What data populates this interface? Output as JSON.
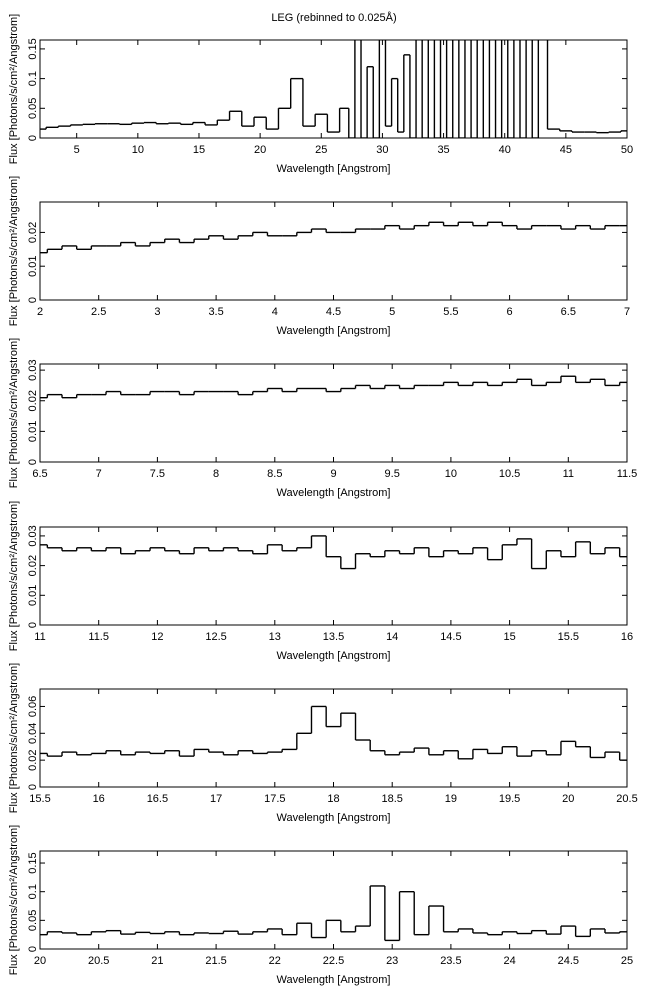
{
  "title": "LEG (rebinned to 0.025Å)",
  "chart_data": [
    {
      "type": "step",
      "x_label": "Wavelength [Angstrom]",
      "y_label": "Flux [Photons/s/cm²/Angstrom]",
      "color": "#000000",
      "xlim": [
        2,
        50
      ],
      "ylim": [
        0,
        0.165
      ],
      "xticks": [
        5,
        10,
        15,
        20,
        25,
        30,
        35,
        40,
        45,
        50
      ],
      "yticks": [
        0,
        0.05,
        0.1,
        0.15
      ],
      "x": [
        2,
        3,
        4,
        5,
        6,
        7,
        8,
        9,
        10,
        11,
        12,
        13,
        14,
        15,
        16,
        17,
        18,
        19,
        20,
        21,
        22,
        23,
        24,
        25,
        26,
        27,
        27.5,
        28,
        28.5,
        29,
        29.5,
        30,
        30.5,
        31,
        31.5,
        32,
        32.5,
        33,
        33.5,
        34,
        34.5,
        35,
        35.5,
        36,
        36.5,
        37,
        37.5,
        38,
        38.5,
        39,
        39.5,
        40,
        40.5,
        41,
        41.5,
        42,
        42.5,
        43,
        44,
        45,
        46,
        47,
        48,
        49,
        50
      ],
      "values": [
        0.015,
        0.018,
        0.02,
        0.022,
        0.023,
        0.024,
        0.024,
        0.023,
        0.025,
        0.026,
        0.024,
        0.025,
        0.023,
        0.026,
        0.022,
        0.03,
        0.045,
        0.02,
        0.035,
        0.015,
        0.05,
        0.1,
        0.02,
        0.04,
        0.01,
        0.05,
        0.0,
        0.18,
        0.0,
        0.12,
        0.0,
        0.18,
        0.02,
        0.1,
        0.01,
        0.14,
        0.0,
        0.18,
        0.0,
        0.18,
        0.0,
        0.18,
        0.0,
        0.18,
        0.0,
        0.18,
        0.0,
        0.18,
        0.0,
        0.18,
        0.0,
        0.18,
        0.0,
        0.18,
        0.0,
        0.18,
        0.0,
        0.18,
        0.015,
        0.012,
        0.01,
        0.01,
        0.009,
        0.01,
        0.012
      ]
    },
    {
      "type": "step",
      "x_label": "Wavelength [Angstrom]",
      "y_label": "Flux [Photons/s/cm²/Angstrom]",
      "color": "#000000",
      "xlim": [
        2,
        7
      ],
      "ylim": [
        0,
        0.029
      ],
      "xticks": [
        2,
        2.5,
        3,
        3.5,
        4,
        4.5,
        5,
        5.5,
        6,
        6.5,
        7
      ],
      "yticks": [
        0,
        0.01,
        0.02
      ],
      "x": [
        2,
        2.125,
        2.25,
        2.375,
        2.5,
        2.625,
        2.75,
        2.875,
        3,
        3.125,
        3.25,
        3.375,
        3.5,
        3.625,
        3.75,
        3.875,
        4,
        4.125,
        4.25,
        4.375,
        4.5,
        4.625,
        4.75,
        4.875,
        5,
        5.125,
        5.25,
        5.375,
        5.5,
        5.625,
        5.75,
        5.875,
        6,
        6.125,
        6.25,
        6.375,
        6.5,
        6.625,
        6.75,
        6.875,
        7
      ],
      "values": [
        0.014,
        0.015,
        0.016,
        0.015,
        0.016,
        0.016,
        0.017,
        0.016,
        0.017,
        0.018,
        0.017,
        0.018,
        0.019,
        0.018,
        0.019,
        0.02,
        0.019,
        0.019,
        0.02,
        0.021,
        0.02,
        0.02,
        0.021,
        0.021,
        0.022,
        0.021,
        0.022,
        0.023,
        0.022,
        0.023,
        0.022,
        0.023,
        0.022,
        0.021,
        0.022,
        0.022,
        0.021,
        0.022,
        0.021,
        0.022,
        0.022
      ]
    },
    {
      "type": "step",
      "x_label": "Wavelength [Angstrom]",
      "y_label": "Flux [Photons/s/cm²/Angstrom]",
      "color": "#000000",
      "xlim": [
        6.5,
        11.5
      ],
      "ylim": [
        0,
        0.032
      ],
      "xticks": [
        6.5,
        7,
        7.5,
        8,
        8.5,
        9,
        9.5,
        10,
        10.5,
        11,
        11.5
      ],
      "yticks": [
        0,
        0.01,
        0.02,
        0.03
      ],
      "x": [
        6.5,
        6.625,
        6.75,
        6.875,
        7,
        7.125,
        7.25,
        7.375,
        7.5,
        7.625,
        7.75,
        7.875,
        8,
        8.125,
        8.25,
        8.375,
        8.5,
        8.625,
        8.75,
        8.875,
        9,
        9.125,
        9.25,
        9.375,
        9.5,
        9.625,
        9.75,
        9.875,
        10,
        10.125,
        10.25,
        10.375,
        10.5,
        10.625,
        10.75,
        10.875,
        11,
        11.125,
        11.25,
        11.375,
        11.5
      ],
      "values": [
        0.021,
        0.022,
        0.021,
        0.022,
        0.022,
        0.023,
        0.022,
        0.022,
        0.023,
        0.023,
        0.022,
        0.023,
        0.023,
        0.023,
        0.022,
        0.023,
        0.024,
        0.023,
        0.024,
        0.024,
        0.023,
        0.024,
        0.025,
        0.024,
        0.025,
        0.024,
        0.025,
        0.025,
        0.026,
        0.025,
        0.026,
        0.025,
        0.026,
        0.027,
        0.025,
        0.026,
        0.028,
        0.026,
        0.027,
        0.025,
        0.026
      ]
    },
    {
      "type": "step",
      "x_label": "Wavelength [Angstrom]",
      "y_label": "Flux [Photons/s/cm²/Angstrom]",
      "color": "#000000",
      "xlim": [
        11,
        16
      ],
      "ylim": [
        0,
        0.033
      ],
      "xticks": [
        11,
        11.5,
        12,
        12.5,
        13,
        13.5,
        14,
        14.5,
        15,
        15.5,
        16
      ],
      "yticks": [
        0,
        0.01,
        0.02,
        0.03
      ],
      "x": [
        11,
        11.125,
        11.25,
        11.375,
        11.5,
        11.625,
        11.75,
        11.875,
        12,
        12.125,
        12.25,
        12.375,
        12.5,
        12.625,
        12.75,
        12.875,
        13,
        13.125,
        13.25,
        13.375,
        13.5,
        13.625,
        13.75,
        13.875,
        14,
        14.125,
        14.25,
        14.375,
        14.5,
        14.625,
        14.75,
        14.875,
        15,
        15.125,
        15.25,
        15.375,
        15.5,
        15.625,
        15.75,
        15.875,
        16
      ],
      "values": [
        0.027,
        0.026,
        0.025,
        0.026,
        0.025,
        0.026,
        0.024,
        0.025,
        0.026,
        0.025,
        0.024,
        0.026,
        0.025,
        0.026,
        0.025,
        0.024,
        0.027,
        0.025,
        0.026,
        0.03,
        0.023,
        0.019,
        0.024,
        0.023,
        0.025,
        0.024,
        0.026,
        0.023,
        0.025,
        0.024,
        0.026,
        0.022,
        0.027,
        0.029,
        0.019,
        0.025,
        0.023,
        0.028,
        0.024,
        0.026,
        0.023
      ]
    },
    {
      "type": "step",
      "x_label": "Wavelength [Angstrom]",
      "y_label": "Flux [Photons/s/cm²/Angstrom]",
      "color": "#000000",
      "xlim": [
        15.5,
        20.5
      ],
      "ylim": [
        0,
        0.073
      ],
      "xticks": [
        15.5,
        16,
        16.5,
        17,
        17.5,
        18,
        18.5,
        19,
        19.5,
        20,
        20.5
      ],
      "yticks": [
        0,
        0.02,
        0.04,
        0.06
      ],
      "x": [
        15.5,
        15.625,
        15.75,
        15.875,
        16,
        16.125,
        16.25,
        16.375,
        16.5,
        16.625,
        16.75,
        16.875,
        17,
        17.125,
        17.25,
        17.375,
        17.5,
        17.625,
        17.75,
        17.875,
        18,
        18.125,
        18.25,
        18.375,
        18.5,
        18.625,
        18.75,
        18.875,
        19,
        19.125,
        19.25,
        19.375,
        19.5,
        19.625,
        19.75,
        19.875,
        20,
        20.125,
        20.25,
        20.375,
        20.5
      ],
      "values": [
        0.025,
        0.023,
        0.026,
        0.024,
        0.025,
        0.027,
        0.024,
        0.026,
        0.025,
        0.027,
        0.023,
        0.028,
        0.026,
        0.024,
        0.027,
        0.025,
        0.026,
        0.028,
        0.04,
        0.06,
        0.045,
        0.055,
        0.035,
        0.027,
        0.024,
        0.026,
        0.029,
        0.024,
        0.027,
        0.021,
        0.028,
        0.025,
        0.03,
        0.023,
        0.027,
        0.024,
        0.034,
        0.03,
        0.022,
        0.026,
        0.02
      ]
    },
    {
      "type": "step",
      "x_label": "Wavelength [Angstrom]",
      "y_label": "Flux [Photons/s/cm²/Angstrom]",
      "color": "#000000",
      "xlim": [
        20,
        25
      ],
      "ylim": [
        0,
        0.171
      ],
      "xticks": [
        20,
        20.5,
        21,
        21.5,
        22,
        22.5,
        23,
        23.5,
        24,
        24.5,
        25
      ],
      "yticks": [
        0,
        0.05,
        0.1,
        0.15
      ],
      "x": [
        20,
        20.125,
        20.25,
        20.375,
        20.5,
        20.625,
        20.75,
        20.875,
        21,
        21.125,
        21.25,
        21.375,
        21.5,
        21.625,
        21.75,
        21.875,
        22,
        22.125,
        22.25,
        22.375,
        22.5,
        22.625,
        22.75,
        22.875,
        23,
        23.125,
        23.25,
        23.375,
        23.5,
        23.625,
        23.75,
        23.875,
        24,
        24.125,
        24.25,
        24.375,
        24.5,
        24.625,
        24.75,
        24.875,
        25
      ],
      "values": [
        0.025,
        0.03,
        0.028,
        0.025,
        0.03,
        0.032,
        0.026,
        0.029,
        0.027,
        0.03,
        0.025,
        0.028,
        0.027,
        0.031,
        0.026,
        0.03,
        0.035,
        0.025,
        0.045,
        0.02,
        0.05,
        0.03,
        0.04,
        0.11,
        0.015,
        0.1,
        0.025,
        0.075,
        0.03,
        0.035,
        0.028,
        0.025,
        0.03,
        0.027,
        0.032,
        0.026,
        0.04,
        0.022,
        0.035,
        0.028,
        0.03
      ]
    }
  ]
}
